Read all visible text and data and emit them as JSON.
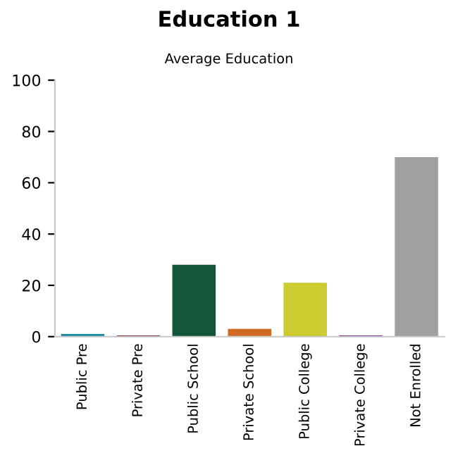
{
  "chart_data": {
    "type": "bar",
    "title": "Education 1",
    "subtitle": "Average Education",
    "categories": [
      "Public Pre",
      "Private Pre",
      "Public School",
      "Private School",
      "Public College",
      "Private College",
      "Not Enrolled"
    ],
    "values": [
      1,
      0.5,
      28,
      3,
      21,
      0.5,
      70
    ],
    "colors": [
      "#1a8aa0",
      "#7a1010",
      "#14563a",
      "#d06a20",
      "#cccc30",
      "#7a1870",
      "#a0a0a0"
    ],
    "ylim": [
      0,
      100
    ],
    "yticks": [
      0,
      20,
      40,
      60,
      80,
      100
    ],
    "grid": false
  }
}
